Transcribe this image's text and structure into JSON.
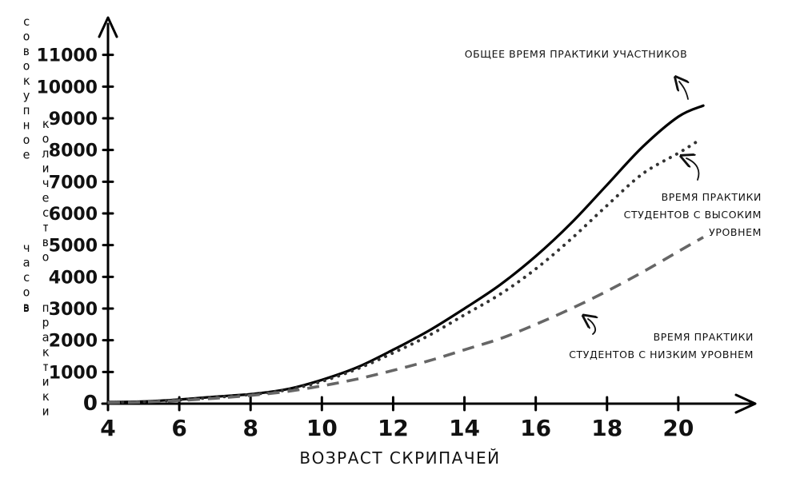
{
  "chart_data": {
    "type": "line",
    "xlabel": "ВОЗРАСТ СКРИПАЧЕЙ",
    "ylabel_columns": [
      "совокупное",
      "количество",
      "часов",
      "в",
      "практики"
    ],
    "xlim": [
      4,
      22
    ],
    "ylim": [
      0,
      12000
    ],
    "x_ticks": [
      4,
      6,
      8,
      10,
      12,
      14,
      16,
      18,
      20
    ],
    "y_ticks": [
      0,
      1000,
      2000,
      3000,
      4000,
      5000,
      6000,
      7000,
      8000,
      9000,
      10000,
      11000
    ],
    "grid": false,
    "series": [
      {
        "name": "общее время практики участников",
        "style": "solid",
        "color": "#000000",
        "x": [
          4,
          5,
          6,
          7,
          8,
          9,
          10,
          11,
          12,
          13,
          14,
          15,
          16,
          17,
          18,
          19,
          20,
          20.7
        ],
        "y": [
          50,
          70,
          130,
          220,
          300,
          450,
          750,
          1150,
          1700,
          2300,
          3000,
          3750,
          4650,
          5700,
          6900,
          8100,
          9050,
          9400
        ]
      },
      {
        "name": "время практики студентов с высоким уровнем",
        "style": "dotted",
        "color": "#333333",
        "x": [
          4,
          5,
          6,
          7,
          8,
          9,
          10,
          11,
          12,
          13,
          14,
          15,
          16,
          17,
          18,
          19,
          20,
          20.5
        ],
        "y": [
          40,
          60,
          120,
          200,
          290,
          430,
          700,
          1100,
          1600,
          2150,
          2800,
          3450,
          4250,
          5200,
          6250,
          7250,
          7900,
          8250
        ]
      },
      {
        "name": "время практики студентов с низким уровнем",
        "style": "dashed",
        "color": "#666666",
        "x": [
          4,
          5,
          6,
          7,
          8,
          9,
          10,
          11,
          12,
          13,
          14,
          15,
          16,
          17,
          18,
          19,
          20,
          20.7
        ],
        "y": [
          30,
          50,
          100,
          170,
          260,
          380,
          560,
          780,
          1050,
          1350,
          1700,
          2050,
          2500,
          3000,
          3550,
          4150,
          4800,
          5250
        ]
      }
    ],
    "annotations": [
      {
        "series": 0,
        "lines": [
          "ОБЩЕЕ ВРЕМЯ ПРАКТИКИ УЧАСТНИКОВ"
        ]
      },
      {
        "series": 1,
        "lines": [
          "ВРЕМЯ ПРАКТИКИ",
          "СТУДЕНТОВ С ВЫСОКИМ",
          "УРОВНЕМ"
        ]
      },
      {
        "series": 2,
        "lines": [
          "ВРЕМЯ ПРАКТИКИ",
          "СТУДЕНТОВ С НИЗКИМ УРОВНЕМ"
        ]
      }
    ]
  }
}
